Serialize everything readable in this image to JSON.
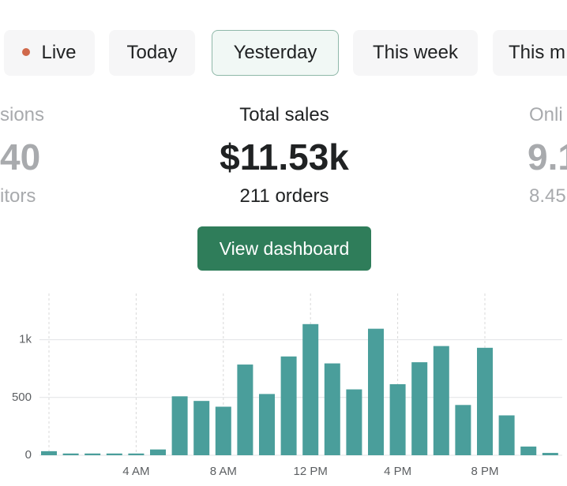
{
  "tabs": [
    {
      "label": "Live",
      "live": true
    },
    {
      "label": "Today"
    },
    {
      "label": "Yesterday",
      "selected": true
    },
    {
      "label": "This week"
    },
    {
      "label": "This m"
    }
  ],
  "stats": {
    "left": {
      "title": "sions",
      "value": "40",
      "sub": "itors"
    },
    "center": {
      "title": "Total sales",
      "value": "$11.53k",
      "sub": "211 orders"
    },
    "right": {
      "title": "Onli",
      "value": "9.1",
      "sub": "8.45"
    }
  },
  "button": "View dashboard",
  "chart_data": {
    "type": "bar",
    "color": "#4a9e9b",
    "categories": [
      null,
      null,
      null,
      null,
      "4 AM",
      null,
      null,
      null,
      "8 AM",
      null,
      null,
      null,
      "12 PM",
      null,
      null,
      null,
      "4 PM",
      null,
      null,
      null,
      "8 PM",
      null,
      null,
      null
    ],
    "values": [
      35,
      15,
      15,
      15,
      15,
      50,
      510,
      470,
      420,
      785,
      530,
      855,
      1135,
      795,
      570,
      1095,
      615,
      805,
      945,
      435,
      930,
      345,
      75,
      20
    ],
    "ylim": [
      0,
      1400
    ],
    "yticks": [
      0,
      500,
      {
        "value": 1000,
        "label": "1k"
      }
    ],
    "grid": true
  }
}
